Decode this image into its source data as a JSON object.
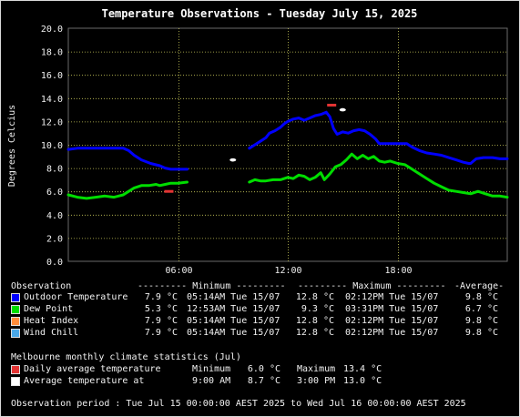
{
  "chart_data": {
    "type": "line",
    "title": "Temperature Observations - Tuesday July 15, 2025",
    "ylabel": "Degrees Celcius",
    "xlabel": "",
    "ylim": [
      0,
      20
    ],
    "yticks": [
      "0.0",
      "2.0",
      "4.0",
      "6.0",
      "8.0",
      "10.0",
      "12.0",
      "14.0",
      "16.0",
      "18.0",
      "20.0"
    ],
    "xticks": [
      {
        "hour": 6,
        "label": "06:00"
      },
      {
        "hour": 12,
        "label": "12:00"
      },
      {
        "hour": 18,
        "label": "18:00"
      }
    ],
    "xlim_hours": [
      0,
      24
    ],
    "grid": true,
    "series": [
      {
        "name": "Outdoor Temperature",
        "color": "#0000ff",
        "segments": [
          [
            [
              0,
              9.6
            ],
            [
              0.5,
              9.7
            ],
            [
              1.0,
              9.7
            ],
            [
              1.5,
              9.7
            ],
            [
              2.0,
              9.7
            ],
            [
              2.5,
              9.7
            ],
            [
              3.0,
              9.7
            ],
            [
              3.3,
              9.5
            ],
            [
              3.6,
              9.1
            ],
            [
              4.0,
              8.7
            ],
            [
              4.5,
              8.4
            ],
            [
              5.0,
              8.2
            ],
            [
              5.3,
              8.0
            ],
            [
              5.6,
              7.9
            ],
            [
              6.0,
              7.9
            ],
            [
              6.5,
              7.9
            ]
          ],
          [
            [
              9.9,
              9.7
            ],
            [
              10.2,
              10.0
            ],
            [
              10.5,
              10.3
            ],
            [
              10.8,
              10.6
            ],
            [
              11.0,
              11.0
            ],
            [
              11.3,
              11.2
            ],
            [
              11.6,
              11.5
            ],
            [
              11.8,
              11.8
            ],
            [
              12.0,
              12.0
            ],
            [
              12.3,
              12.2
            ],
            [
              12.6,
              12.3
            ],
            [
              12.9,
              12.1
            ],
            [
              13.2,
              12.3
            ],
            [
              13.5,
              12.5
            ],
            [
              13.8,
              12.6
            ],
            [
              14.1,
              12.8
            ],
            [
              14.3,
              12.4
            ],
            [
              14.5,
              11.4
            ],
            [
              14.7,
              10.9
            ],
            [
              15.0,
              11.1
            ],
            [
              15.3,
              11.0
            ],
            [
              15.6,
              11.2
            ],
            [
              15.9,
              11.3
            ],
            [
              16.2,
              11.2
            ],
            [
              16.5,
              10.9
            ],
            [
              16.8,
              10.5
            ],
            [
              17.0,
              10.1
            ],
            [
              17.5,
              10.1
            ],
            [
              18.0,
              10.1
            ],
            [
              18.5,
              10.1
            ],
            [
              18.8,
              9.8
            ],
            [
              19.2,
              9.5
            ],
            [
              19.6,
              9.3
            ],
            [
              20.0,
              9.2
            ],
            [
              20.4,
              9.1
            ],
            [
              20.8,
              8.9
            ],
            [
              21.2,
              8.7
            ],
            [
              21.6,
              8.5
            ],
            [
              21.9,
              8.4
            ],
            [
              22.0,
              8.4
            ],
            [
              22.3,
              8.8
            ],
            [
              22.7,
              8.9
            ],
            [
              23.2,
              8.9
            ],
            [
              23.6,
              8.8
            ],
            [
              24.0,
              8.8
            ]
          ]
        ]
      },
      {
        "name": "Dew Point",
        "color": "#00dd00",
        "segments": [
          [
            [
              0,
              5.7
            ],
            [
              0.5,
              5.5
            ],
            [
              1.0,
              5.4
            ],
            [
              1.5,
              5.5
            ],
            [
              2.0,
              5.6
            ],
            [
              2.5,
              5.5
            ],
            [
              3.0,
              5.7
            ],
            [
              3.3,
              6.0
            ],
            [
              3.6,
              6.3
            ],
            [
              4.0,
              6.5
            ],
            [
              4.4,
              6.5
            ],
            [
              4.8,
              6.6
            ],
            [
              5.0,
              6.5
            ],
            [
              5.3,
              6.6
            ],
            [
              5.6,
              6.7
            ],
            [
              6.0,
              6.7
            ],
            [
              6.5,
              6.8
            ]
          ],
          [
            [
              9.9,
              6.8
            ],
            [
              10.2,
              7.0
            ],
            [
              10.5,
              6.9
            ],
            [
              10.8,
              6.9
            ],
            [
              11.2,
              7.0
            ],
            [
              11.6,
              7.0
            ],
            [
              12.0,
              7.2
            ],
            [
              12.3,
              7.1
            ],
            [
              12.6,
              7.4
            ],
            [
              12.9,
              7.3
            ],
            [
              13.2,
              7.0
            ],
            [
              13.5,
              7.2
            ],
            [
              13.8,
              7.6
            ],
            [
              14.0,
              7.0
            ],
            [
              14.3,
              7.5
            ],
            [
              14.6,
              8.1
            ],
            [
              14.9,
              8.3
            ],
            [
              15.2,
              8.7
            ],
            [
              15.5,
              9.2
            ],
            [
              15.8,
              8.8
            ],
            [
              16.1,
              9.1
            ],
            [
              16.4,
              8.8
            ],
            [
              16.7,
              9.0
            ],
            [
              17.0,
              8.6
            ],
            [
              17.3,
              8.5
            ],
            [
              17.6,
              8.6
            ],
            [
              18.0,
              8.4
            ],
            [
              18.4,
              8.3
            ],
            [
              18.8,
              7.9
            ],
            [
              19.2,
              7.5
            ],
            [
              19.6,
              7.1
            ],
            [
              20.0,
              6.7
            ],
            [
              20.4,
              6.4
            ],
            [
              20.8,
              6.1
            ],
            [
              21.2,
              6.0
            ],
            [
              21.6,
              5.9
            ],
            [
              22.0,
              5.8
            ],
            [
              22.4,
              6.0
            ],
            [
              22.8,
              5.8
            ],
            [
              23.2,
              5.6
            ],
            [
              23.6,
              5.6
            ],
            [
              24.0,
              5.5
            ]
          ]
        ]
      }
    ],
    "markers": [
      {
        "kind": "daily-average",
        "hour": 5.5,
        "value": 6.0,
        "color": "#e33333"
      },
      {
        "kind": "daily-average",
        "hour": 14.4,
        "value": 13.4,
        "color": "#e33333"
      },
      {
        "kind": "average-temperature",
        "hour": 9.0,
        "value": 8.7,
        "color": "#ffffff"
      },
      {
        "kind": "average-temperature",
        "hour": 15.0,
        "value": 13.0,
        "color": "#ffffff"
      }
    ]
  },
  "table": {
    "header": {
      "observation": "Observation",
      "minimum": "--------- Minimum ---------",
      "maximum": "--------- Maximum ---------",
      "average": "-Average-"
    },
    "rows": [
      {
        "name": "Outdoor Temperature",
        "color": "#0000ff",
        "min": "7.9 °C",
        "min_time": "05:14AM Tue 15/07",
        "max": "12.8 °C",
        "max_time": "02:12PM Tue 15/07",
        "avg": "9.8 °C"
      },
      {
        "name": "Dew Point",
        "color": "#00dd00",
        "min": "5.3 °C",
        "min_time": "12:53AM Tue 15/07",
        "max": "9.3 °C",
        "max_time": "03:31PM Tue 15/07",
        "avg": "6.7 °C"
      },
      {
        "name": "Heat Index",
        "color": "#ff8c3a",
        "min": "7.9 °C",
        "min_time": "05:14AM Tue 15/07",
        "max": "12.8 °C",
        "max_time": "02:12PM Tue 15/07",
        "avg": "9.8 °C"
      },
      {
        "name": "Wind Chill",
        "color": "#4aa8e8",
        "min": "7.9 °C",
        "min_time": "05:14AM Tue 15/07",
        "max": "12.8 °C",
        "max_time": "02:12PM Tue 15/07",
        "avg": "9.8 °C"
      }
    ]
  },
  "climate": {
    "title": "Melbourne monthly climate statistics (Jul)",
    "rows": [
      {
        "label": "Daily average temperature",
        "color": "#e33333",
        "a_label": "Minimum",
        "a_value": "6.0 °C",
        "b_label": "Maximum",
        "b_value": "13.4 °C"
      },
      {
        "label": "Average temperature at",
        "color": "#ffffff",
        "a_label": "9:00 AM",
        "a_value": "8.7 °C",
        "b_label": "3:00 PM",
        "b_value": "13.0 °C"
      }
    ]
  },
  "footer": {
    "period": "Observation period : Tue Jul 15 00:00:00 AEST 2025 to Wed Jul 16 00:00:00 AEST 2025"
  }
}
